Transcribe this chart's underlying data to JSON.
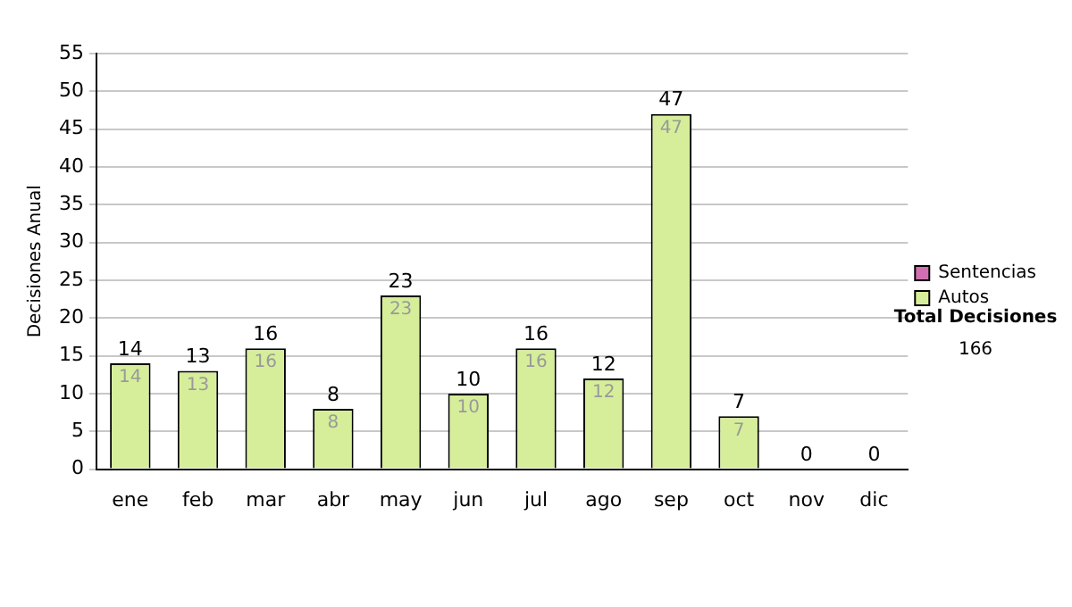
{
  "chart_data": {
    "type": "bar",
    "stacked": true,
    "ylabel": "Decisiones Anual",
    "categories": [
      "ene",
      "feb",
      "mar",
      "abr",
      "may",
      "jun",
      "jul",
      "ago",
      "sep",
      "oct",
      "nov",
      "dic"
    ],
    "series": [
      {
        "name": "Sentencias",
        "color": "#d070b0",
        "values": [
          0,
          0,
          0,
          0,
          0,
          0,
          0,
          0,
          0,
          0,
          0,
          0
        ]
      },
      {
        "name": "Autos",
        "color": "#d6ee9a",
        "values": [
          14,
          13,
          16,
          8,
          23,
          10,
          16,
          12,
          47,
          7,
          0,
          0
        ],
        "value_labels": [
          "14",
          "13",
          "16",
          "8",
          "23",
          "10",
          "16",
          "12",
          "47",
          "7",
          null,
          null
        ]
      }
    ],
    "totals": [
      "14",
      "13",
      "16",
      "8",
      "23",
      "10",
      "16",
      "12",
      "47",
      "7",
      "0",
      "0"
    ],
    "ylim": [
      0,
      55
    ],
    "yticks": [
      0,
      5,
      10,
      15,
      20,
      25,
      30,
      35,
      40,
      45,
      50,
      55
    ],
    "grid": "y",
    "legend": "right",
    "annotations": [
      "Total Decisiones",
      "166"
    ]
  }
}
